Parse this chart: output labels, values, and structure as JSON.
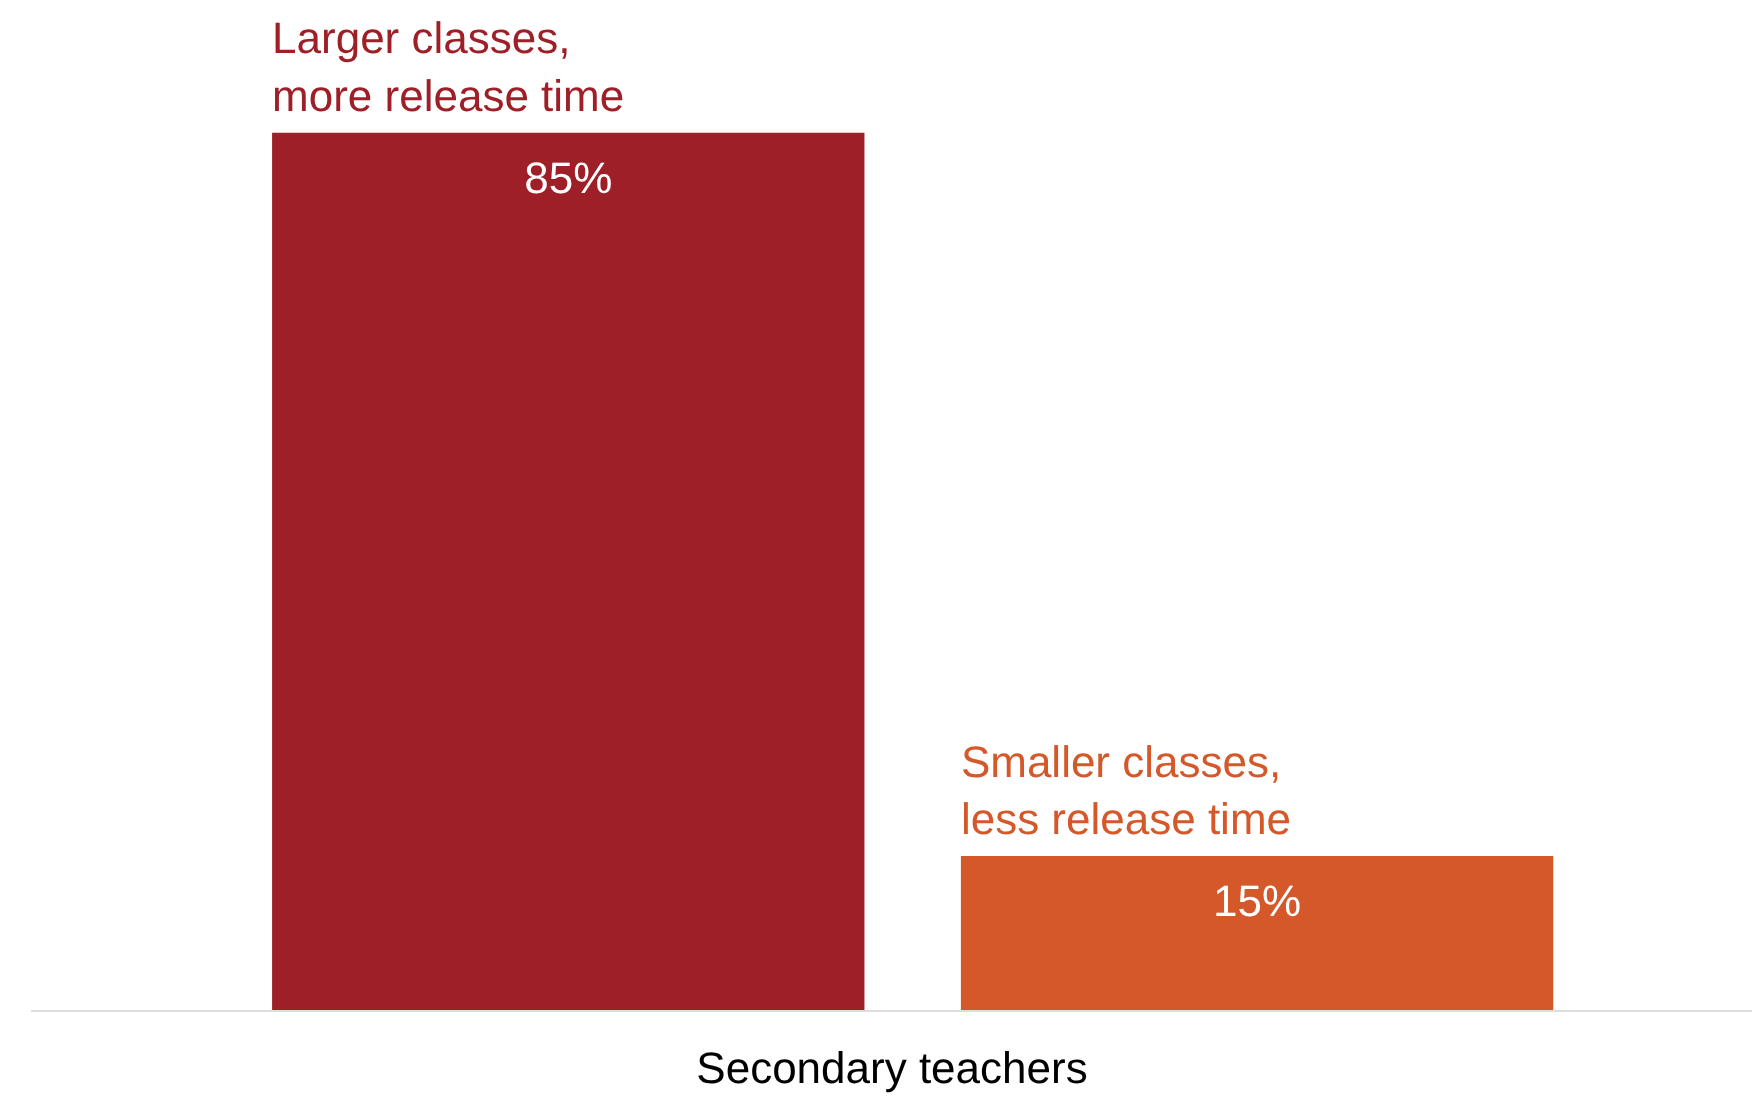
{
  "chart_data": {
    "type": "bar",
    "xlabel": "Secondary teachers",
    "categories": [
      null,
      null
    ],
    "values": [
      85,
      15
    ],
    "colors": [
      "#9e1f27",
      "#d4582a"
    ],
    "value_labels": [
      "85%",
      "15%"
    ],
    "annotations": [
      {
        "text": "Larger classes,\nmore release time",
        "y": 85
      },
      {
        "text": "Smaller classes,\nless release time",
        "y": 15
      }
    ]
  }
}
